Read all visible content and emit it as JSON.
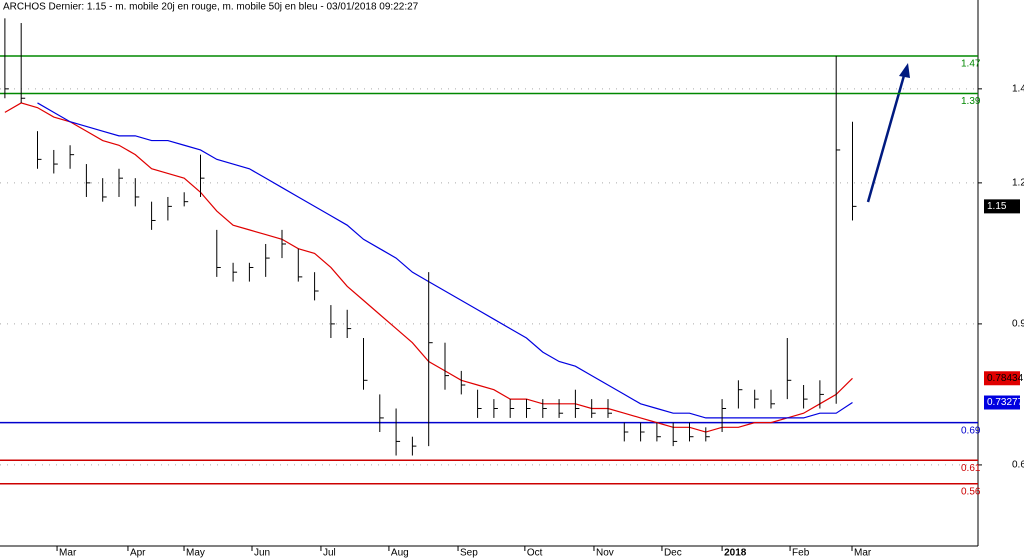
{
  "chart_data": {
    "type": "ohlc",
    "title": "ARCHOS Dernier: 1.15 - m. mobile 20j en rouge, m. mobile 50j en bleu - 03/01/2018 09:22:27",
    "x": [
      0,
      1,
      2,
      3,
      4,
      5,
      6,
      7,
      8,
      9,
      10,
      11,
      12,
      13,
      14,
      15,
      16,
      17,
      18,
      19,
      20,
      21,
      22,
      23,
      24,
      25,
      26,
      27,
      28,
      29,
      30,
      31,
      32,
      33,
      34,
      35,
      36,
      37,
      38,
      39,
      40,
      41,
      42,
      43,
      44,
      45,
      46,
      47,
      48,
      49,
      50,
      51,
      52
    ],
    "xlim": [
      -0.3,
      59.7
    ],
    "xticks": [
      {
        "value": 3.2,
        "label": "Mar"
      },
      {
        "value": 7.55,
        "label": "Apr"
      },
      {
        "value": 10.99,
        "label": "May"
      },
      {
        "value": 15.16,
        "label": "Jun"
      },
      {
        "value": 19.39,
        "label": "Jul"
      },
      {
        "value": 23.56,
        "label": "Aug"
      },
      {
        "value": 27.8,
        "label": "Sep"
      },
      {
        "value": 31.9,
        "label": "Oct"
      },
      {
        "value": 36.14,
        "label": "Nov"
      },
      {
        "value": 40.31,
        "label": "Dec"
      },
      {
        "value": 44.0,
        "label": "2018"
      },
      {
        "value": 48.17,
        "label": "Feb"
      },
      {
        "value": 51.97,
        "label": "Mar"
      }
    ],
    "ylim": [
      0.402,
      1.589
    ],
    "yticks": [
      1.4,
      1.2,
      0.9,
      0.6
    ],
    "grid": true,
    "series": [
      {
        "color": "#000000",
        "high": [
          1.55,
          1.54,
          1.31,
          1.27,
          1.28,
          1.24,
          1.21,
          1.23,
          1.21,
          1.16,
          1.17,
          1.18,
          1.26,
          1.1,
          1.03,
          1.03,
          1.07,
          1.1,
          1.06,
          1.01,
          0.94,
          0.93,
          0.87,
          0.75,
          0.72,
          0.66,
          1.01,
          0.86,
          0.8,
          0.76,
          0.74,
          0.74,
          0.74,
          0.74,
          0.74,
          0.76,
          0.74,
          0.74,
          0.69,
          0.69,
          0.69,
          0.69,
          0.69,
          0.68,
          0.74,
          0.78,
          0.76,
          0.76,
          0.87,
          0.77,
          0.78,
          1.47,
          1.33
        ],
        "low": [
          1.38,
          1.37,
          1.23,
          1.22,
          1.23,
          1.17,
          1.16,
          1.17,
          1.15,
          1.1,
          1.12,
          1.15,
          1.17,
          1.0,
          0.99,
          0.99,
          1.0,
          1.04,
          0.99,
          0.95,
          0.87,
          0.87,
          0.76,
          0.67,
          0.62,
          0.62,
          0.64,
          0.76,
          0.75,
          0.7,
          0.7,
          0.7,
          0.7,
          0.7,
          0.7,
          0.7,
          0.7,
          0.7,
          0.65,
          0.65,
          0.65,
          0.64,
          0.65,
          0.65,
          0.67,
          0.72,
          0.72,
          0.72,
          0.74,
          0.72,
          0.72,
          0.73,
          1.12
        ],
        "close": [
          1.4,
          1.38,
          1.25,
          1.24,
          1.26,
          1.2,
          1.17,
          1.21,
          1.17,
          1.12,
          1.15,
          1.16,
          1.21,
          1.02,
          1.01,
          1.02,
          1.04,
          1.07,
          1.0,
          0.97,
          0.9,
          0.89,
          0.78,
          0.7,
          0.65,
          0.64,
          0.86,
          0.79,
          0.77,
          0.72,
          0.72,
          0.72,
          0.72,
          0.72,
          0.71,
          0.72,
          0.71,
          0.71,
          0.67,
          0.67,
          0.66,
          0.65,
          0.66,
          0.66,
          0.72,
          0.76,
          0.74,
          0.73,
          0.78,
          0.74,
          0.75,
          1.27,
          1.15
        ]
      }
    ],
    "lines": [
      {
        "color": "#e00000",
        "values": [
          1.35,
          1.37,
          1.36,
          1.34,
          1.33,
          1.31,
          1.29,
          1.28,
          1.26,
          1.23,
          1.22,
          1.21,
          1.18,
          1.14,
          1.11,
          1.1,
          1.09,
          1.08,
          1.06,
          1.05,
          1.02,
          0.98,
          0.95,
          0.92,
          0.89,
          0.86,
          0.82,
          0.8,
          0.78,
          0.77,
          0.76,
          0.74,
          0.74,
          0.73,
          0.73,
          0.73,
          0.72,
          0.72,
          0.71,
          0.7,
          0.69,
          0.68,
          0.68,
          0.67,
          0.68,
          0.68,
          0.69,
          0.69,
          0.7,
          0.71,
          0.73,
          0.75,
          0.78434
        ]
      },
      {
        "color": "#0000e0",
        "values": [
          null,
          null,
          1.37,
          1.35,
          1.33,
          1.32,
          1.31,
          1.3,
          1.3,
          1.29,
          1.29,
          1.28,
          1.27,
          1.25,
          1.24,
          1.23,
          1.21,
          1.19,
          1.17,
          1.15,
          1.13,
          1.11,
          1.08,
          1.06,
          1.04,
          1.01,
          0.99,
          0.97,
          0.95,
          0.93,
          0.91,
          0.89,
          0.87,
          0.84,
          0.82,
          0.81,
          0.79,
          0.77,
          0.75,
          0.73,
          0.72,
          0.71,
          0.71,
          0.7,
          0.7,
          0.7,
          0.7,
          0.7,
          0.7,
          0.7,
          0.71,
          0.71,
          0.73277
        ]
      }
    ],
    "levels": [
      {
        "value": 1.47,
        "color": "#008800"
      },
      {
        "value": 1.39,
        "color": "#008800"
      },
      {
        "value": 0.69,
        "color": "#0000cc"
      },
      {
        "value": 0.61,
        "color": "#cc0000"
      },
      {
        "value": 0.56,
        "color": "#cc0000"
      }
    ]
  }
}
